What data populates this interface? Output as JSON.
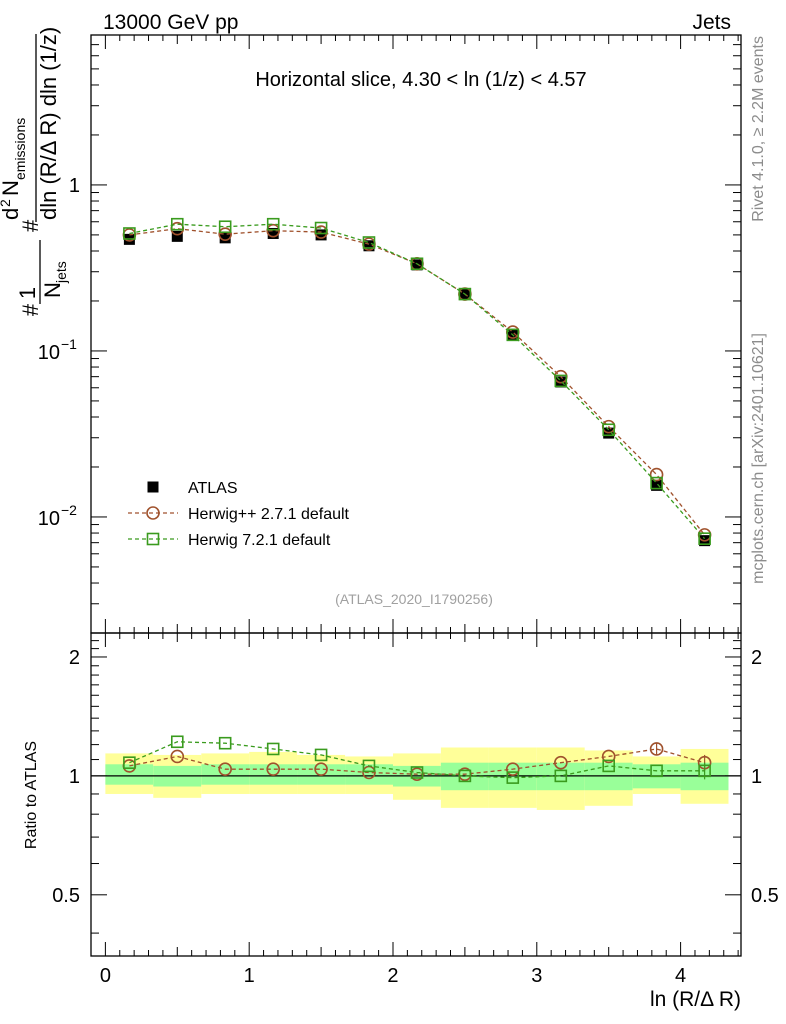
{
  "chart_data": {
    "type": "scatter",
    "header_left": "13000 GeV pp",
    "header_right": "Jets",
    "title": "Horizontal slice, 4.30 < ln (1/z) < 4.57",
    "watermark": "(ATLAS_2020_I1790256)",
    "side_label_top": "Rivet 4.1.0, ≥ 2.2M events",
    "side_label_bottom": "mcplots.cern.ch [arXiv:2401.10621]",
    "xlabel": "ln (R/Δ R)",
    "ylabel_parts": {
      "prefix": "1",
      "njets": "N",
      "njets_sub": "jets",
      "num": "d",
      "num_sup": "2",
      "num_n": "N",
      "num_sub": "emissions",
      "den": "dln (R/Δ R) dln (1/z)"
    },
    "ratio_ylabel": "Ratio to ATLAS",
    "xlim": [
      -0.1,
      4.42
    ],
    "ylim_log": [
      0.002,
      8
    ],
    "ratio_ylim": [
      0.35,
      2.3
    ],
    "x_ticks": [
      "0",
      "1",
      "2",
      "3",
      "4"
    ],
    "y_tick_labels": {
      "one": "1",
      "tenth_base": "10",
      "tenth_exp": "−1",
      "hundredth_base": "10",
      "hundredth_exp": "−2"
    },
    "ratio_tick_labels": [
      "0.5",
      "1",
      "2"
    ],
    "x": [
      0.167,
      0.5,
      0.833,
      1.167,
      1.5,
      1.833,
      2.167,
      2.5,
      2.833,
      3.167,
      3.5,
      3.833,
      4.167
    ],
    "series": [
      {
        "name": "ATLAS",
        "marker": "filled-square",
        "color": "#000000",
        "values": [
          0.47,
          0.49,
          0.48,
          0.51,
          0.5,
          0.43,
          0.33,
          0.22,
          0.125,
          0.065,
          0.032,
          0.0155,
          0.0072
        ]
      },
      {
        "name": "Herwig++ 2.7.1 default",
        "marker": "open-circle",
        "color": "#a0522d",
        "values": [
          0.5,
          0.545,
          0.505,
          0.53,
          0.52,
          0.44,
          0.335,
          0.22,
          0.13,
          0.07,
          0.035,
          0.018,
          0.0078
        ]
      },
      {
        "name": "Herwig 7.2.1 default",
        "marker": "open-square",
        "color": "#3a9b1e",
        "values": [
          0.51,
          0.58,
          0.56,
          0.58,
          0.55,
          0.45,
          0.335,
          0.22,
          0.125,
          0.066,
          0.0335,
          0.016,
          0.0074
        ]
      }
    ],
    "ratios": [
      {
        "name": "Herwig++ 2.7.1 default",
        "values": [
          1.06,
          1.12,
          1.04,
          1.04,
          1.04,
          1.02,
          1.01,
          1.01,
          1.04,
          1.08,
          1.12,
          1.17,
          1.08
        ],
        "last_err": 0.05
      },
      {
        "name": "Herwig 7.2.1 default",
        "values": [
          1.08,
          1.22,
          1.21,
          1.17,
          1.13,
          1.06,
          1.02,
          1.0,
          0.99,
          1.0,
          1.06,
          1.03,
          1.03
        ],
        "last_err": 0.05
      }
    ],
    "band_edges": [
      0,
      0.333,
      0.667,
      1.0,
      1.333,
      1.667,
      2.0,
      2.333,
      2.667,
      3.0,
      3.333,
      3.667,
      4.0,
      4.333
    ],
    "band_inner": [
      [
        0.95,
        1.07
      ],
      [
        0.94,
        1.06
      ],
      [
        0.95,
        1.07
      ],
      [
        0.95,
        1.07
      ],
      [
        0.95,
        1.07
      ],
      [
        0.95,
        1.07
      ],
      [
        0.94,
        1.06
      ],
      [
        0.92,
        1.08
      ],
      [
        0.92,
        1.08
      ],
      [
        0.92,
        1.08
      ],
      [
        0.92,
        1.08
      ],
      [
        0.93,
        1.07
      ],
      [
        0.92,
        1.08
      ]
    ],
    "band_outer": [
      [
        0.9,
        1.14
      ],
      [
        0.88,
        1.13
      ],
      [
        0.9,
        1.14
      ],
      [
        0.9,
        1.15
      ],
      [
        0.9,
        1.13
      ],
      [
        0.9,
        1.12
      ],
      [
        0.87,
        1.14
      ],
      [
        0.83,
        1.18
      ],
      [
        0.83,
        1.18
      ],
      [
        0.82,
        1.18
      ],
      [
        0.84,
        1.16
      ],
      [
        0.9,
        1.12
      ],
      [
        0.85,
        1.17
      ]
    ]
  }
}
